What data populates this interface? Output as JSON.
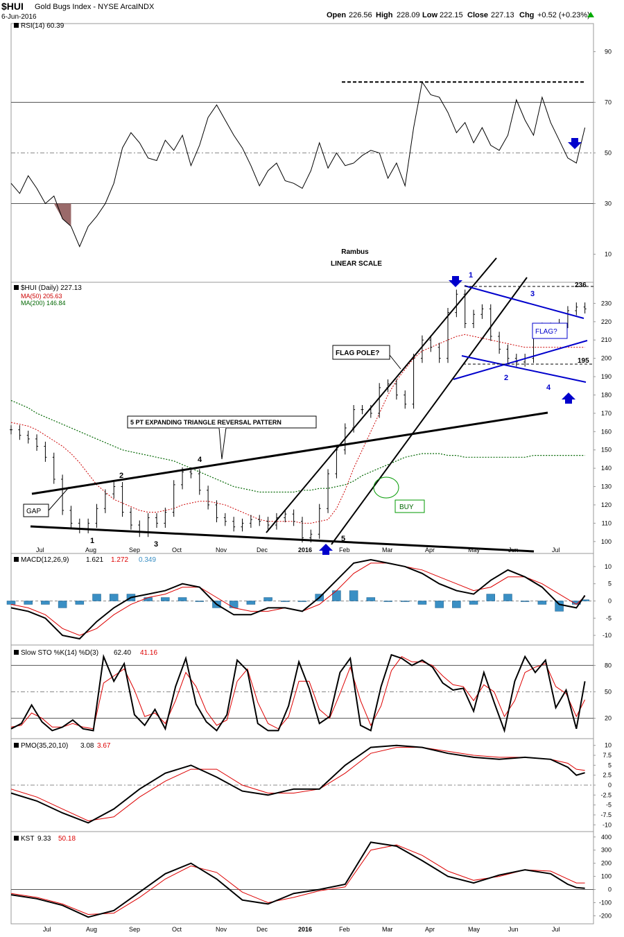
{
  "header": {
    "symbol": "$HUI",
    "name": "Gold Bugs Index - NYSE Arca",
    "exchange": "INDX",
    "date": "6-Jun-2016",
    "open_label": "Open",
    "open": "226.56",
    "high_label": "High",
    "high": "228.09",
    "low_label": "Low",
    "low": "222.15",
    "close_label": "Close",
    "close": "227.13",
    "chg_label": "Chg",
    "chg": "+0.52 (+0.23%)",
    "chg_arrow": "up-arrow-icon"
  },
  "colors": {
    "price": "#000000",
    "ma50": "#cc0000",
    "ma200": "#006600",
    "annotation_blue": "#0000cc",
    "macd_hist": "#3a8fc4",
    "rsi_oversold_fill": "#9a6a6a",
    "rsi_overbought_fill": "#6a806a",
    "signal": "#dd0000",
    "grid": "#888888"
  },
  "annotations": {
    "rambus": "Rambus",
    "scale": "LINEAR SCALE",
    "triangle_label": "5 PT EXPANDING TRIANGLE REVERSAL PATTERN",
    "flagpole_label": "FLAG POLE?",
    "flag_label": "FLAG?",
    "gap_label": "GAP",
    "buy_label": "BUY",
    "level_236": "236",
    "level_195": "195",
    "triangle_points": [
      "1",
      "2",
      "3",
      "4",
      "5"
    ],
    "flag_points": [
      "1",
      "2",
      "3",
      "4"
    ]
  },
  "chart_data": [
    {
      "id": "rsi",
      "type": "line",
      "legend": "RSI(14) 60.39",
      "ylim": [
        0,
        100
      ],
      "yticks": [
        10,
        30,
        50,
        70,
        90
      ],
      "ref_levels": [
        30,
        50,
        70
      ],
      "x": [
        0,
        5,
        10,
        15,
        20,
        25,
        30,
        35,
        40,
        45,
        50,
        55,
        60,
        65,
        70,
        75,
        80,
        85,
        90,
        95,
        100,
        105,
        110,
        115,
        120,
        125,
        130,
        135,
        140,
        145,
        150,
        155,
        160,
        165,
        170,
        175,
        180,
        185,
        190,
        195,
        200,
        205,
        210,
        215,
        220,
        225,
        230,
        235,
        240,
        245,
        250,
        255,
        260,
        265,
        270,
        275,
        280,
        285,
        290,
        295,
        300,
        305,
        310,
        315,
        320,
        325,
        330,
        335
      ],
      "values": [
        38,
        34,
        41,
        36,
        30,
        33,
        24,
        21,
        13,
        21,
        25,
        30,
        38,
        52,
        58,
        54,
        48,
        47,
        55,
        51,
        57,
        45,
        53,
        64,
        69,
        63,
        57,
        52,
        45,
        37,
        43,
        46,
        39,
        38,
        36,
        43,
        54,
        44,
        50,
        45,
        46,
        49,
        51,
        50,
        40,
        46,
        37,
        60,
        78,
        73,
        72,
        66,
        58,
        62,
        54,
        60,
        53,
        51,
        57,
        71,
        63,
        57,
        72,
        62,
        55,
        48,
        46,
        60
      ],
      "oversold_window": [
        18,
        35
      ],
      "overbought_window": [
        170,
        182
      ],
      "dashed_level": 78,
      "arrow": "down"
    },
    {
      "id": "price",
      "type": "candlestick",
      "legend": "$HUI (Daily) 227.13",
      "ma50_legend": "MA(50) 205.63",
      "ma200_legend": "MA(200) 146.84",
      "ylim": [
        95,
        240
      ],
      "yticks": [
        100,
        110,
        120,
        130,
        140,
        150,
        160,
        170,
        180,
        190,
        200,
        210,
        220,
        230
      ],
      "xlabels": [
        "Jul",
        "Aug",
        "Sep",
        "Oct",
        "Nov",
        "Dec",
        "2016",
        "Feb",
        "Mar",
        "Apr",
        "May",
        "Jun",
        "Jul"
      ],
      "x": [
        0,
        5,
        10,
        15,
        20,
        25,
        30,
        35,
        40,
        45,
        50,
        55,
        60,
        65,
        70,
        75,
        80,
        85,
        90,
        95,
        100,
        105,
        110,
        115,
        120,
        125,
        130,
        135,
        140,
        145,
        150,
        155,
        160,
        165,
        170,
        175,
        180,
        185,
        190,
        195,
        200,
        205,
        210,
        215,
        220,
        225,
        230,
        235,
        240,
        245,
        250,
        255,
        260,
        265,
        270,
        275,
        280,
        285,
        290,
        295,
        300,
        305,
        310,
        315,
        320,
        325,
        330,
        335
      ],
      "close": [
        161,
        158,
        156,
        152,
        146,
        134,
        117,
        110,
        107,
        110,
        118,
        126,
        130,
        116,
        109,
        105,
        113,
        110,
        116,
        131,
        138,
        137,
        128,
        120,
        113,
        111,
        108,
        110,
        112,
        111,
        109,
        113,
        115,
        111,
        102,
        104,
        118,
        137,
        150,
        162,
        172,
        172,
        170,
        184,
        186,
        180,
        175,
        200,
        210,
        206,
        200,
        225,
        235,
        219,
        224,
        227,
        212,
        205,
        200,
        198,
        200,
        214,
        217,
        215,
        219,
        226,
        228,
        227
      ],
      "ma50": [
        165,
        164,
        163,
        161,
        158,
        155,
        152,
        148,
        143,
        137,
        131,
        127,
        123,
        121,
        119,
        117,
        116,
        116,
        117,
        118,
        120,
        121,
        122,
        122,
        121,
        120,
        118,
        116,
        114,
        112,
        111,
        111,
        111,
        111,
        110,
        110,
        111,
        112,
        118,
        128,
        140,
        150,
        160,
        170,
        180,
        188,
        194,
        200,
        204,
        206,
        208,
        210,
        212,
        213,
        212,
        211,
        210,
        209,
        208,
        207,
        206,
        206,
        206,
        206,
        206,
        206,
        206,
        206
      ],
      "ma200": [
        177,
        175,
        173,
        170,
        168,
        166,
        164,
        162,
        160,
        158,
        156,
        154,
        152,
        150,
        149,
        148,
        147,
        146,
        145,
        144,
        142,
        140,
        138,
        136,
        134,
        132,
        130,
        129,
        128,
        127,
        127,
        127,
        127,
        127,
        128,
        128,
        129,
        129,
        130,
        131,
        133,
        136,
        138,
        140,
        142,
        144,
        146,
        147,
        148,
        148,
        148,
        147,
        147,
        146,
        146,
        146,
        146,
        146,
        146,
        146,
        146,
        147,
        147,
        147,
        147,
        147,
        147,
        147
      ]
    },
    {
      "id": "macd",
      "type": "line",
      "legend_prefix": "MACD(12,26,9)",
      "legend_macd": "1.621",
      "legend_signal": "1.272",
      "legend_hist": "0.349",
      "ylim": [
        -12,
        13
      ],
      "yticks": [
        -10,
        -5,
        0,
        5,
        10
      ],
      "x": [
        0,
        10,
        20,
        30,
        40,
        50,
        60,
        70,
        80,
        90,
        100,
        110,
        120,
        130,
        140,
        150,
        160,
        170,
        180,
        190,
        200,
        210,
        220,
        230,
        240,
        250,
        260,
        270,
        280,
        290,
        300,
        310,
        320,
        330,
        335
      ],
      "macd": [
        -2,
        -3,
        -5,
        -10,
        -11,
        -6,
        -2,
        1,
        2,
        3,
        5,
        4,
        -1,
        -4,
        -4,
        -2,
        -2,
        -3,
        1,
        6,
        11,
        12,
        11,
        10,
        8,
        5,
        3,
        2,
        6,
        9,
        7,
        4,
        -1,
        -2,
        1.6
      ],
      "signal": [
        -1,
        -2,
        -4,
        -8,
        -10,
        -8,
        -4,
        -1,
        1,
        2,
        4,
        4,
        1,
        -2,
        -3,
        -3,
        -2,
        -3,
        -1,
        3,
        8,
        11,
        11,
        10,
        9,
        7,
        5,
        3,
        4,
        7,
        7,
        5,
        2,
        -1,
        1.3
      ],
      "hist": [
        -1,
        -1,
        -1,
        -2,
        -1,
        2,
        2,
        2,
        1,
        1,
        1,
        0,
        -2,
        -2,
        -1,
        1,
        0,
        0,
        2,
        3,
        3,
        1,
        0,
        0,
        -1,
        -2,
        -2,
        -1,
        2,
        2,
        0,
        -1,
        -3,
        -1,
        0.35
      ]
    },
    {
      "id": "stochastic",
      "type": "line",
      "legend_prefix": "Slow STO %K(14) %D(3)",
      "legend_k": "62.40",
      "legend_d": "41.16",
      "ylim": [
        0,
        100
      ],
      "yticks": [
        20,
        50,
        80
      ],
      "x": [
        0,
        6,
        12,
        18,
        24,
        30,
        36,
        42,
        48,
        54,
        60,
        66,
        72,
        78,
        84,
        90,
        96,
        102,
        108,
        114,
        120,
        126,
        132,
        138,
        144,
        150,
        156,
        162,
        168,
        174,
        180,
        186,
        192,
        198,
        204,
        210,
        216,
        222,
        228,
        234,
        240,
        246,
        252,
        258,
        264,
        270,
        276,
        282,
        288,
        294,
        300,
        306,
        312,
        318,
        324,
        330,
        335
      ],
      "k": [
        8,
        14,
        35,
        16,
        6,
        10,
        18,
        8,
        6,
        90,
        62,
        82,
        24,
        12,
        30,
        8,
        56,
        88,
        36,
        16,
        6,
        24,
        86,
        74,
        14,
        6,
        6,
        34,
        84,
        54,
        14,
        22,
        72,
        88,
        12,
        6,
        56,
        92,
        88,
        80,
        86,
        78,
        60,
        52,
        54,
        28,
        72,
        38,
        6,
        62,
        90,
        72,
        86,
        32,
        52,
        8,
        62
      ],
      "d": [
        10,
        12,
        26,
        20,
        10,
        10,
        14,
        10,
        8,
        60,
        68,
        76,
        52,
        22,
        26,
        14,
        40,
        72,
        56,
        28,
        12,
        18,
        62,
        76,
        38,
        14,
        8,
        22,
        62,
        62,
        30,
        20,
        48,
        78,
        40,
        12,
        34,
        74,
        90,
        84,
        84,
        80,
        68,
        58,
        56,
        40,
        58,
        50,
        22,
        40,
        72,
        78,
        82,
        56,
        48,
        22,
        41
      ]
    },
    {
      "id": "pmo",
      "type": "line",
      "legend_prefix": "PMO(35,20,10)",
      "legend_pmo": "3.08",
      "legend_signal": "3.67",
      "ylim": [
        -11,
        11
      ],
      "yticks": [
        -10,
        -7.5,
        -5,
        -2.5,
        0,
        2.5,
        5,
        7.5,
        10
      ],
      "x": [
        0,
        15,
        30,
        45,
        60,
        75,
        90,
        105,
        120,
        135,
        150,
        165,
        180,
        195,
        210,
        225,
        240,
        255,
        270,
        285,
        300,
        315,
        325,
        330,
        335
      ],
      "pmo": [
        -2,
        -4,
        -7,
        -9.5,
        -6,
        -1,
        3,
        5,
        2,
        -1.5,
        -2.5,
        -1,
        -1,
        5,
        9.5,
        10,
        9.5,
        8,
        7,
        6.5,
        7,
        6.5,
        4.5,
        2.5,
        3.1
      ],
      "signal": [
        -1,
        -3,
        -6,
        -9,
        -8,
        -3,
        1,
        4,
        4,
        0,
        -2,
        -2,
        -1,
        3,
        8,
        9.5,
        9.5,
        8.5,
        7.5,
        7,
        7,
        6.5,
        5.5,
        4,
        3.7
      ]
    },
    {
      "id": "kst",
      "type": "line",
      "legend_prefix": "KST",
      "legend_kst": "9.33",
      "legend_signal": "50.18",
      "ylim": [
        -240,
        420
      ],
      "yticks": [
        -200,
        -100,
        0,
        100,
        200,
        300,
        400
      ],
      "xlabels": [
        "Jul",
        "Aug",
        "Sep",
        "Oct",
        "Nov",
        "Dec",
        "2016",
        "Feb",
        "Mar",
        "Apr",
        "May",
        "Jun",
        "Jul"
      ],
      "x": [
        0,
        15,
        30,
        45,
        60,
        75,
        90,
        105,
        120,
        135,
        150,
        165,
        180,
        195,
        210,
        225,
        240,
        255,
        270,
        285,
        300,
        315,
        325,
        330,
        335
      ],
      "kst": [
        -40,
        -70,
        -120,
        -210,
        -160,
        -20,
        120,
        200,
        80,
        -80,
        -110,
        -30,
        0,
        40,
        360,
        330,
        220,
        100,
        50,
        110,
        150,
        120,
        40,
        15,
        9
      ],
      "signal": [
        -30,
        -60,
        -110,
        -190,
        -180,
        -60,
        80,
        180,
        130,
        -20,
        -100,
        -60,
        -10,
        20,
        300,
        340,
        260,
        140,
        70,
        100,
        150,
        140,
        80,
        50,
        50
      ]
    }
  ]
}
